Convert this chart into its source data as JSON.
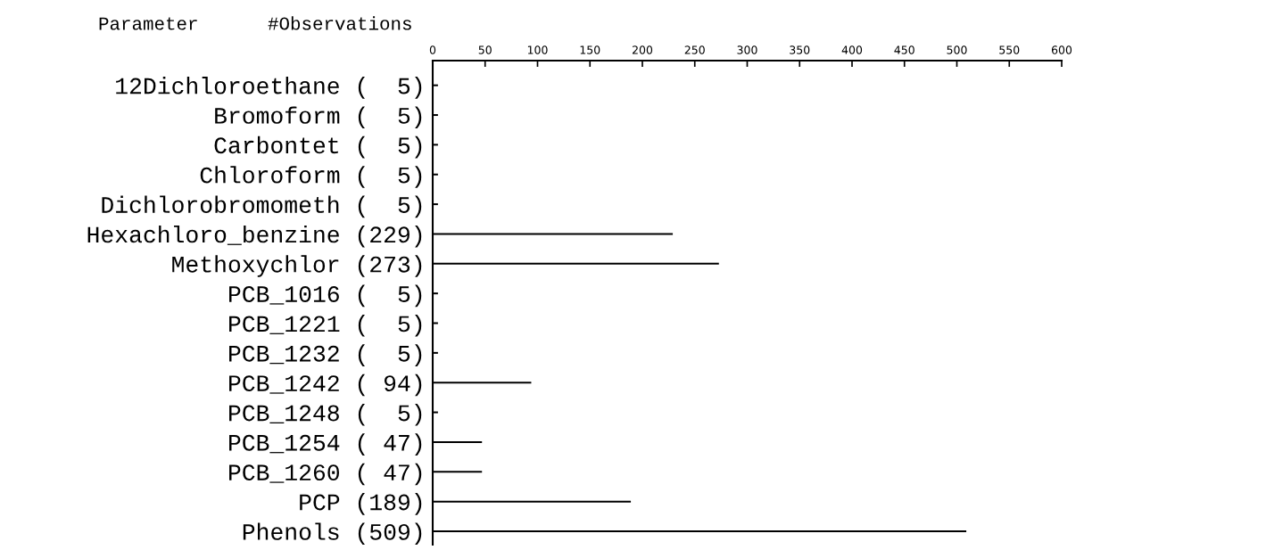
{
  "chart_data": {
    "type": "bar",
    "orientation": "horizontal",
    "annotations": [
      "Parameter",
      "#Observations"
    ],
    "categories": [
      "12Dichloroethane",
      "Bromoform",
      "Carbontet",
      "Chloroform",
      "Dichlorobromometh",
      "Hexachloro_benzine",
      "Methoxychlor",
      "PCB_1016",
      "PCB_1221",
      "PCB_1232",
      "PCB_1242",
      "PCB_1248",
      "PCB_1254",
      "PCB_1260",
      "PCP",
      "Phenols"
    ],
    "values": [
      5,
      5,
      5,
      5,
      5,
      229,
      273,
      5,
      5,
      5,
      94,
      5,
      47,
      47,
      189,
      509
    ],
    "value_labels": [
      "(  5)",
      "(  5)",
      "(  5)",
      "(  5)",
      "(  5)",
      "(229)",
      "(273)",
      "(  5)",
      "(  5)",
      "(  5)",
      "( 94)",
      "(  5)",
      "( 47)",
      "( 47)",
      "(189)",
      "(509)"
    ],
    "color": "#000000",
    "xlim": [
      0,
      600
    ],
    "xticks": [
      0,
      50,
      100,
      150,
      200,
      250,
      300,
      350,
      400,
      450,
      500,
      550,
      600
    ],
    "grid": false
  }
}
